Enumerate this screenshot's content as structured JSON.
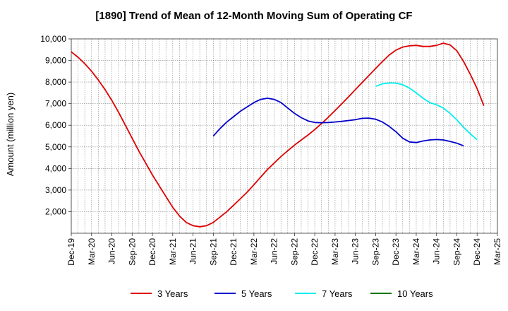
{
  "chart_data": {
    "type": "line",
    "title": "[1890]  Trend of Mean of 12-Month Moving Sum of Operating CF",
    "xlabel": "",
    "ylabel": "Amount (million yen)",
    "ylim": [
      1000,
      10000
    ],
    "yticks": [
      2000,
      3000,
      4000,
      5000,
      6000,
      7000,
      8000,
      9000,
      10000
    ],
    "ytick_labels": [
      "2,000",
      "3,000",
      "4,000",
      "5,000",
      "6,000",
      "7,000",
      "8,000",
      "9,000",
      "10,000"
    ],
    "x_start": "Dec-19",
    "x_tick_step_months": 3,
    "x_tick_labels": [
      "Dec-19",
      "Mar-20",
      "Jun-20",
      "Sep-20",
      "Dec-20",
      "Mar-21",
      "Jun-21",
      "Sep-21",
      "Dec-21",
      "Mar-22",
      "Jun-22",
      "Sep-22",
      "Dec-22",
      "Mar-23",
      "Jun-23",
      "Sep-23",
      "Dec-23",
      "Mar-24",
      "Jun-24",
      "Sep-24",
      "Dec-24",
      "Mar-25"
    ],
    "grid": true,
    "legend_position": "bottom",
    "series": [
      {
        "name": "3 Years",
        "color": "#dd0000",
        "start_index": 0,
        "values": [
          9400,
          9150,
          8850,
          8500,
          8100,
          7650,
          7150,
          6600,
          6000,
          5400,
          4800,
          4250,
          3700,
          3200,
          2700,
          2200,
          1800,
          1500,
          1350,
          1300,
          1350,
          1500,
          1750,
          2000,
          2300,
          2600,
          2900,
          3250,
          3600,
          3950,
          4250,
          4550,
          4820,
          5080,
          5320,
          5550,
          5800,
          6080,
          6370,
          6680,
          7000,
          7320,
          7650,
          7980,
          8300,
          8630,
          8950,
          9250,
          9480,
          9620,
          9680,
          9700,
          9650,
          9650,
          9700,
          9800,
          9720,
          9450,
          8950,
          8350,
          7700,
          6900
        ]
      },
      {
        "name": "5 Years",
        "color": "#0000cc",
        "start_index": 21,
        "values": [
          5500,
          5850,
          6150,
          6400,
          6650,
          6850,
          7050,
          7200,
          7250,
          7200,
          7050,
          6800,
          6550,
          6350,
          6200,
          6130,
          6120,
          6130,
          6150,
          6180,
          6220,
          6260,
          6320,
          6330,
          6280,
          6150,
          5950,
          5700,
          5400,
          5230,
          5200,
          5270,
          5320,
          5340,
          5320,
          5250,
          5170,
          5050
        ]
      },
      {
        "name": "7 Years",
        "color": "#00eeee",
        "start_index": 45,
        "values": [
          7800,
          7920,
          7960,
          7950,
          7880,
          7720,
          7500,
          7250,
          7050,
          6950,
          6800,
          6550,
          6250,
          5900,
          5600,
          5330
        ]
      },
      {
        "name": "10 Years",
        "color": "#007700",
        "start_index": 0,
        "values": []
      }
    ]
  }
}
